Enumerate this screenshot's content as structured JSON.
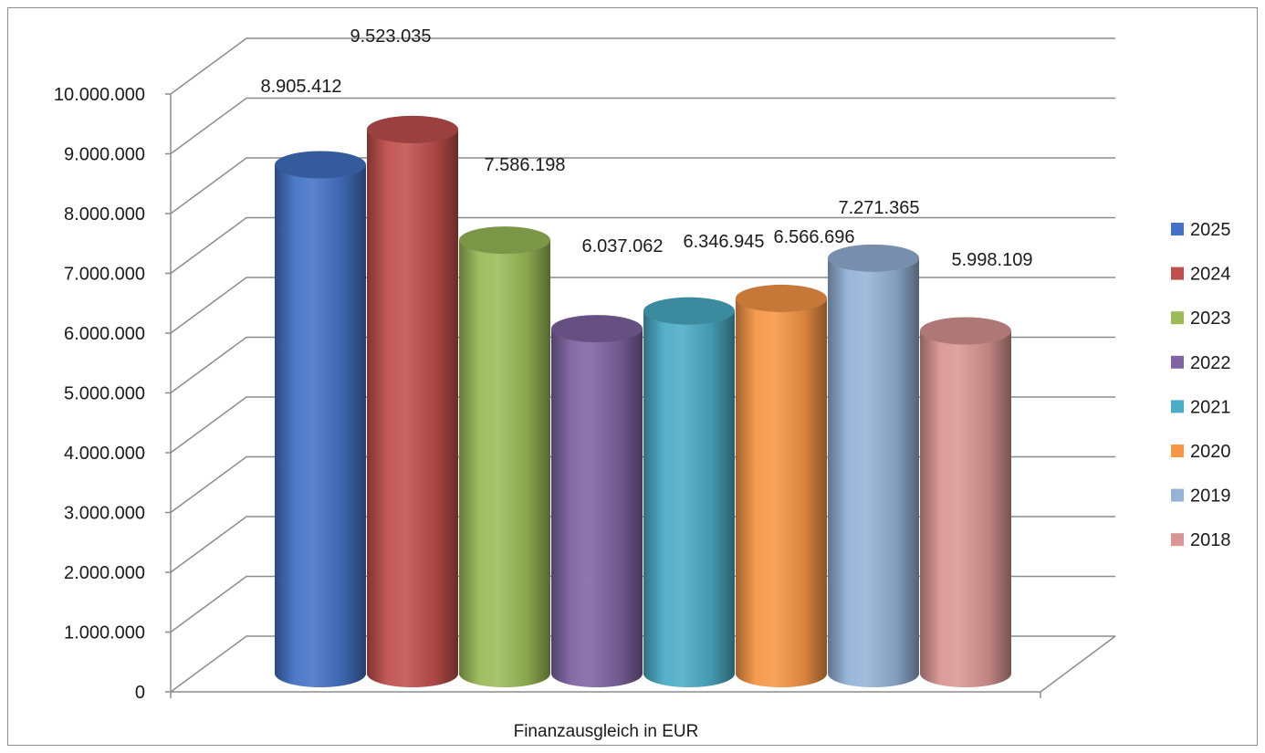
{
  "chart_data": {
    "type": "bar",
    "xlabel": "Finanzausgleich in EUR",
    "ylabel": "",
    "ylim": [
      0,
      10000000
    ],
    "ytick_labels": [
      "0",
      "1.000.000",
      "2.000.000",
      "3.000.000",
      "4.000.000",
      "5.000.000",
      "6.000.000",
      "7.000.000",
      "8.000.000",
      "9.000.000",
      "10.000.000"
    ],
    "grid": true,
    "legend_position": "right",
    "series": [
      {
        "name": "2025",
        "value": 8905412,
        "label": "8.905.412",
        "color": "#4472c4"
      },
      {
        "name": "2024",
        "value": 9523035,
        "label": "9.523.035",
        "color": "#c0504d"
      },
      {
        "name": "2023",
        "value": 7586198,
        "label": "7.586.198",
        "color": "#9bbb59"
      },
      {
        "name": "2022",
        "value": 6037062,
        "label": "6.037.062",
        "color": "#8064a2"
      },
      {
        "name": "2021",
        "value": 6346945,
        "label": "6.346.945",
        "color": "#4bacc6"
      },
      {
        "name": "2020",
        "value": 6566696,
        "label": "6.566.696",
        "color": "#f79646"
      },
      {
        "name": "2019",
        "value": 7271365,
        "label": "7.271.365",
        "color": "#95b3d7"
      },
      {
        "name": "2018",
        "value": 5998109,
        "label": "5.998.109",
        "color": "#d99694"
      }
    ]
  }
}
